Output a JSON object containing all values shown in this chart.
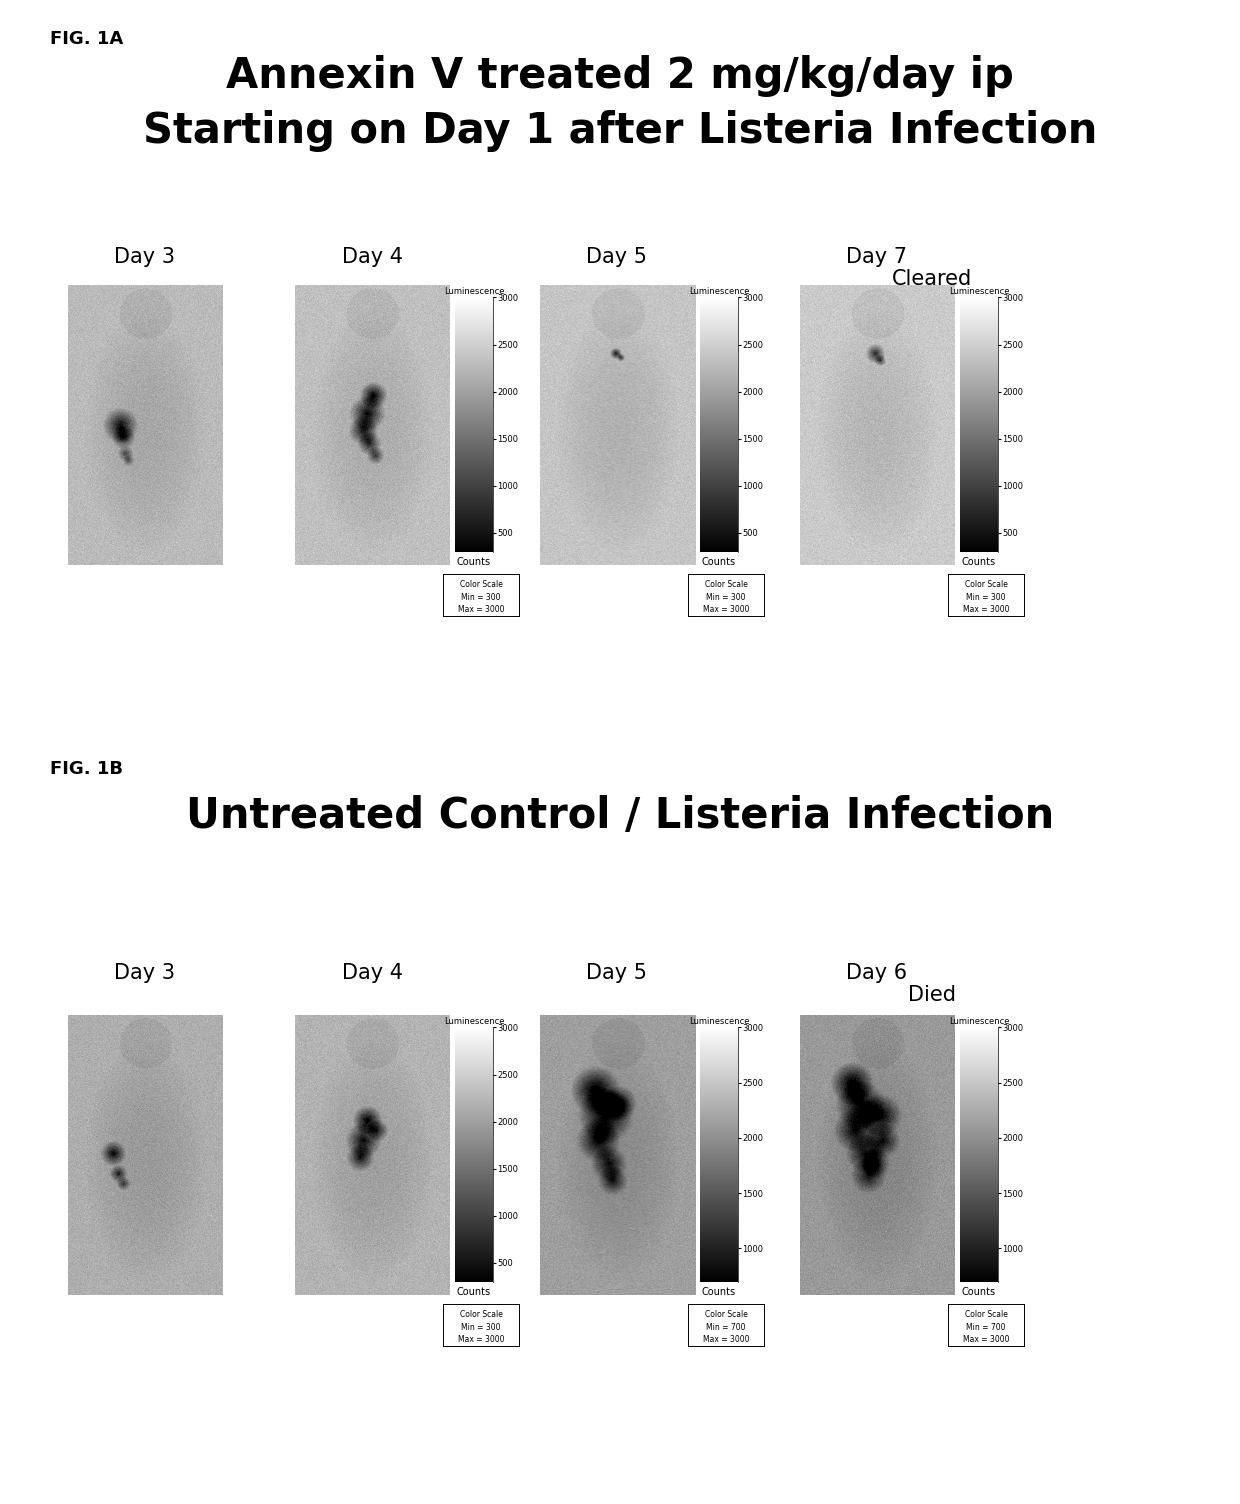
{
  "fig_label_a": "FIG. 1A",
  "fig_label_b": "FIG. 1B",
  "title_a_line1": "Annexin V treated 2 mg/kg/day ip",
  "title_a_line2": "Starting on Day 1 after Listeria Infection",
  "title_b": "Untreated Control / Listeria Infection",
  "panel_a_days": [
    "Day 3",
    "Day 4",
    "Day 5",
    "Day 7"
  ],
  "panel_a_sub": [
    "",
    "",
    "",
    "Cleared"
  ],
  "panel_b_days": [
    "Day 3",
    "Day 4",
    "Day 5",
    "Day 6"
  ],
  "panel_b_sub": [
    "",
    "",
    "",
    "Died"
  ],
  "panel_a_mins": [
    "300",
    "300",
    "300",
    "300"
  ],
  "panel_b_mins": [
    "300",
    "300",
    "700",
    "700"
  ],
  "colorbar_max": "3000",
  "background_color": "#ffffff",
  "text_color": "#000000",
  "title_fontsize": 30,
  "day_label_fontsize": 15,
  "fig_label_fontsize": 13,
  "counts_fontsize": 7,
  "colorscale_fontsize": 5.5,
  "lum_label_fontsize": 6
}
